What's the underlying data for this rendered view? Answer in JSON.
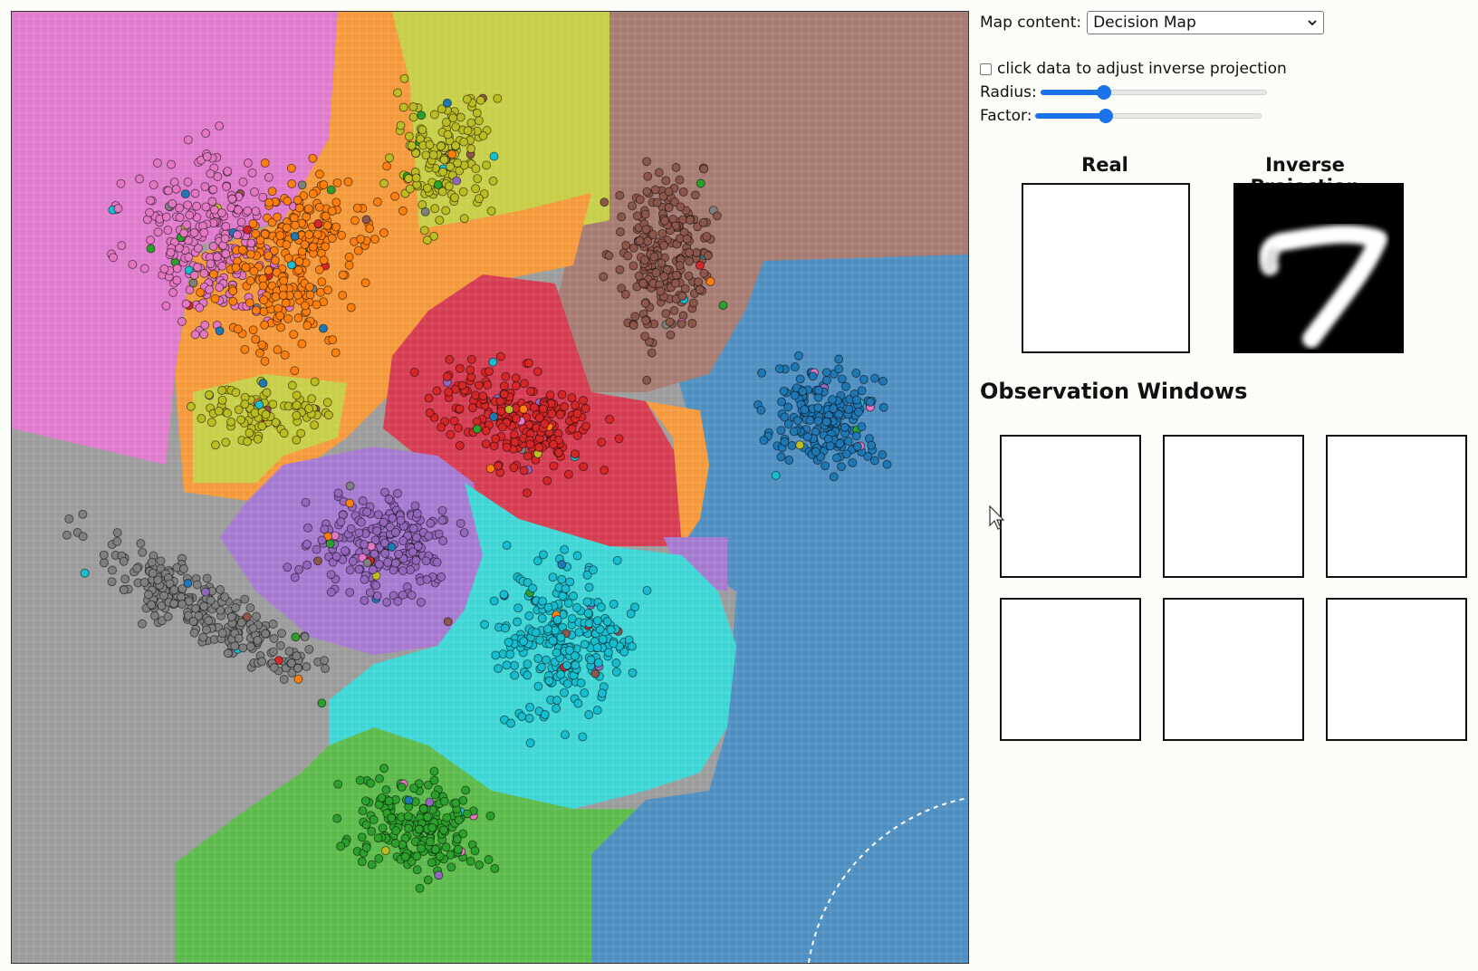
{
  "controls": {
    "map_content_label": "Map content:",
    "map_content_value": "Decision Map",
    "adjust_checkbox_label": "click data to adjust inverse projection",
    "adjust_checked": false,
    "radius_label": "Radius:",
    "radius_value": 0.28,
    "factor_label": "Factor:",
    "factor_value": 0.31
  },
  "previews": {
    "real_label": "Real",
    "inverse_label": "Inverse Projection"
  },
  "observation": {
    "title": "Observation Windows",
    "window_count": 6
  },
  "map": {
    "colors": {
      "pink": "#e377c2",
      "orange": "#ff7f0e",
      "olive": "#bcbd22",
      "brown": "#8c564b",
      "blue": "#1f77b4",
      "red": "#d62728",
      "purple": "#9467bd",
      "cyan": "#17becf",
      "gray": "#7f7f7f",
      "green": "#2ca02c"
    }
  }
}
